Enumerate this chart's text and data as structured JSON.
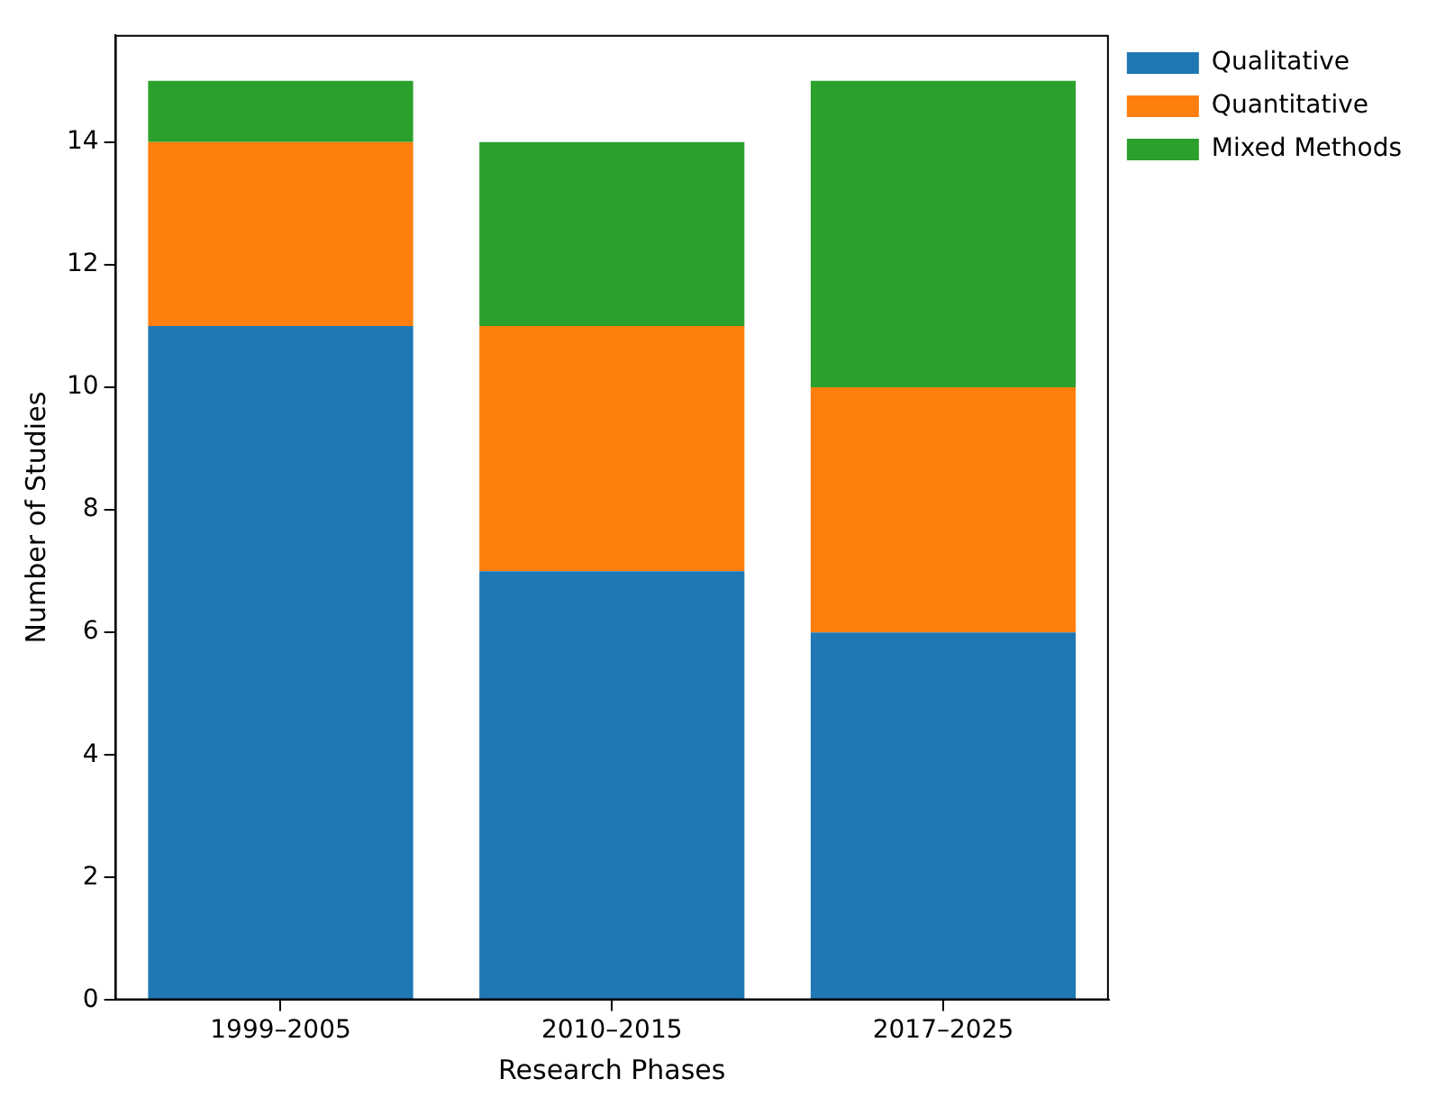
{
  "chart_data": {
    "type": "bar",
    "stacked": true,
    "xlabel": "Research Phases",
    "ylabel": "Number of Studies",
    "categories": [
      "1999–2005",
      "2010–2015",
      "2017–2025"
    ],
    "series": [
      {
        "name": "Qualitative",
        "color": "#1f77b4",
        "values": [
          11,
          7,
          6
        ]
      },
      {
        "name": "Quantitative",
        "color": "#ff7f0e",
        "values": [
          3,
          4,
          4
        ]
      },
      {
        "name": "Mixed Methods",
        "color": "#2ca02c",
        "values": [
          1,
          3,
          5
        ]
      }
    ],
    "ylim": [
      0,
      15.75
    ],
    "yticks": [
      0,
      2,
      4,
      6,
      8,
      10,
      12,
      14
    ],
    "grid": false,
    "legend": "top right"
  }
}
